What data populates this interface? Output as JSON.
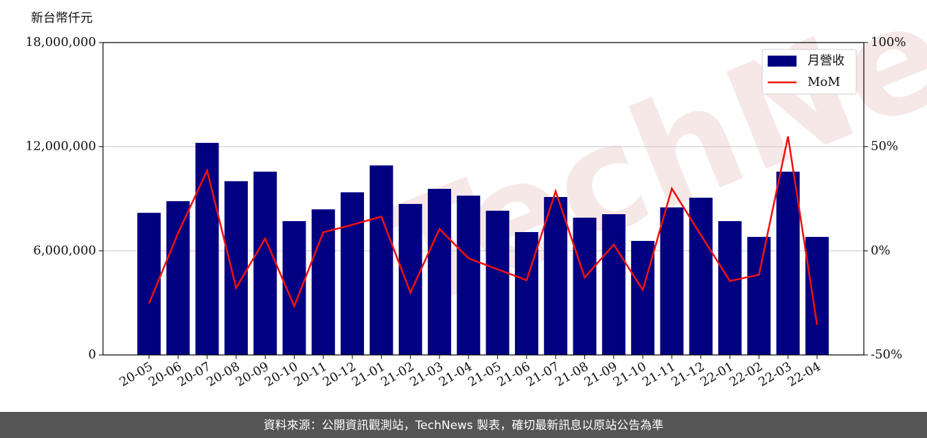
{
  "chart_data": {
    "type": "bar-line",
    "y_label": "新台幣仟元",
    "watermark": "TechNews",
    "footer": "資料來源：公開資訊觀測站，TechNews 製表，確切最新訊息以原站公告為準",
    "categories": [
      "20-05",
      "20-06",
      "20-07",
      "20-08",
      "20-09",
      "20-10",
      "20-11",
      "20-12",
      "21-01",
      "21-02",
      "21-03",
      "21-04",
      "21-05",
      "21-06",
      "21-07",
      "21-08",
      "21-09",
      "21-10",
      "21-11",
      "21-12",
      "22-01",
      "22-02",
      "22-03",
      "22-04"
    ],
    "series": [
      {
        "name": "月營收",
        "type": "bar",
        "color": "#000080",
        "values": [
          8190000,
          8860000,
          12220000,
          10010000,
          10560000,
          7710000,
          8390000,
          9370000,
          10920000,
          8700000,
          9570000,
          9180000,
          8310000,
          7080000,
          9100000,
          7910000,
          8110000,
          6570000,
          8500000,
          9060000,
          7710000,
          6800000,
          10560000,
          6800000
        ]
      },
      {
        "name": "MoM",
        "type": "line",
        "axis": "y2",
        "color": "#ee1111",
        "values": [
          -25.3,
          8.5,
          38.5,
          -17.8,
          5.9,
          -26.6,
          8.9,
          12.5,
          16.4,
          -20.1,
          10.5,
          -3.6,
          -8.9,
          -14.1,
          28.6,
          -12.8,
          3.0,
          -18.8,
          29.9,
          7.6,
          -14.5,
          -11.5,
          54.9,
          -35.5
        ]
      }
    ],
    "ylim": [
      0,
      18000000
    ],
    "yticks": [
      0,
      {
        "value": 6000000,
        "label": "6,000,000"
      },
      {
        "value": 12000000,
        "label": "12,000,000"
      },
      {
        "value": 18000000,
        "label": "18,000,000"
      }
    ],
    "y2lim": [
      -50,
      100
    ],
    "y2ticks": [
      {
        "value": -50,
        "label": "-50%"
      },
      {
        "value": 0,
        "label": "0%"
      },
      {
        "value": 50,
        "label": "50%"
      },
      {
        "value": 100,
        "label": "100%"
      }
    ],
    "grid": true,
    "legend": "upper right"
  }
}
